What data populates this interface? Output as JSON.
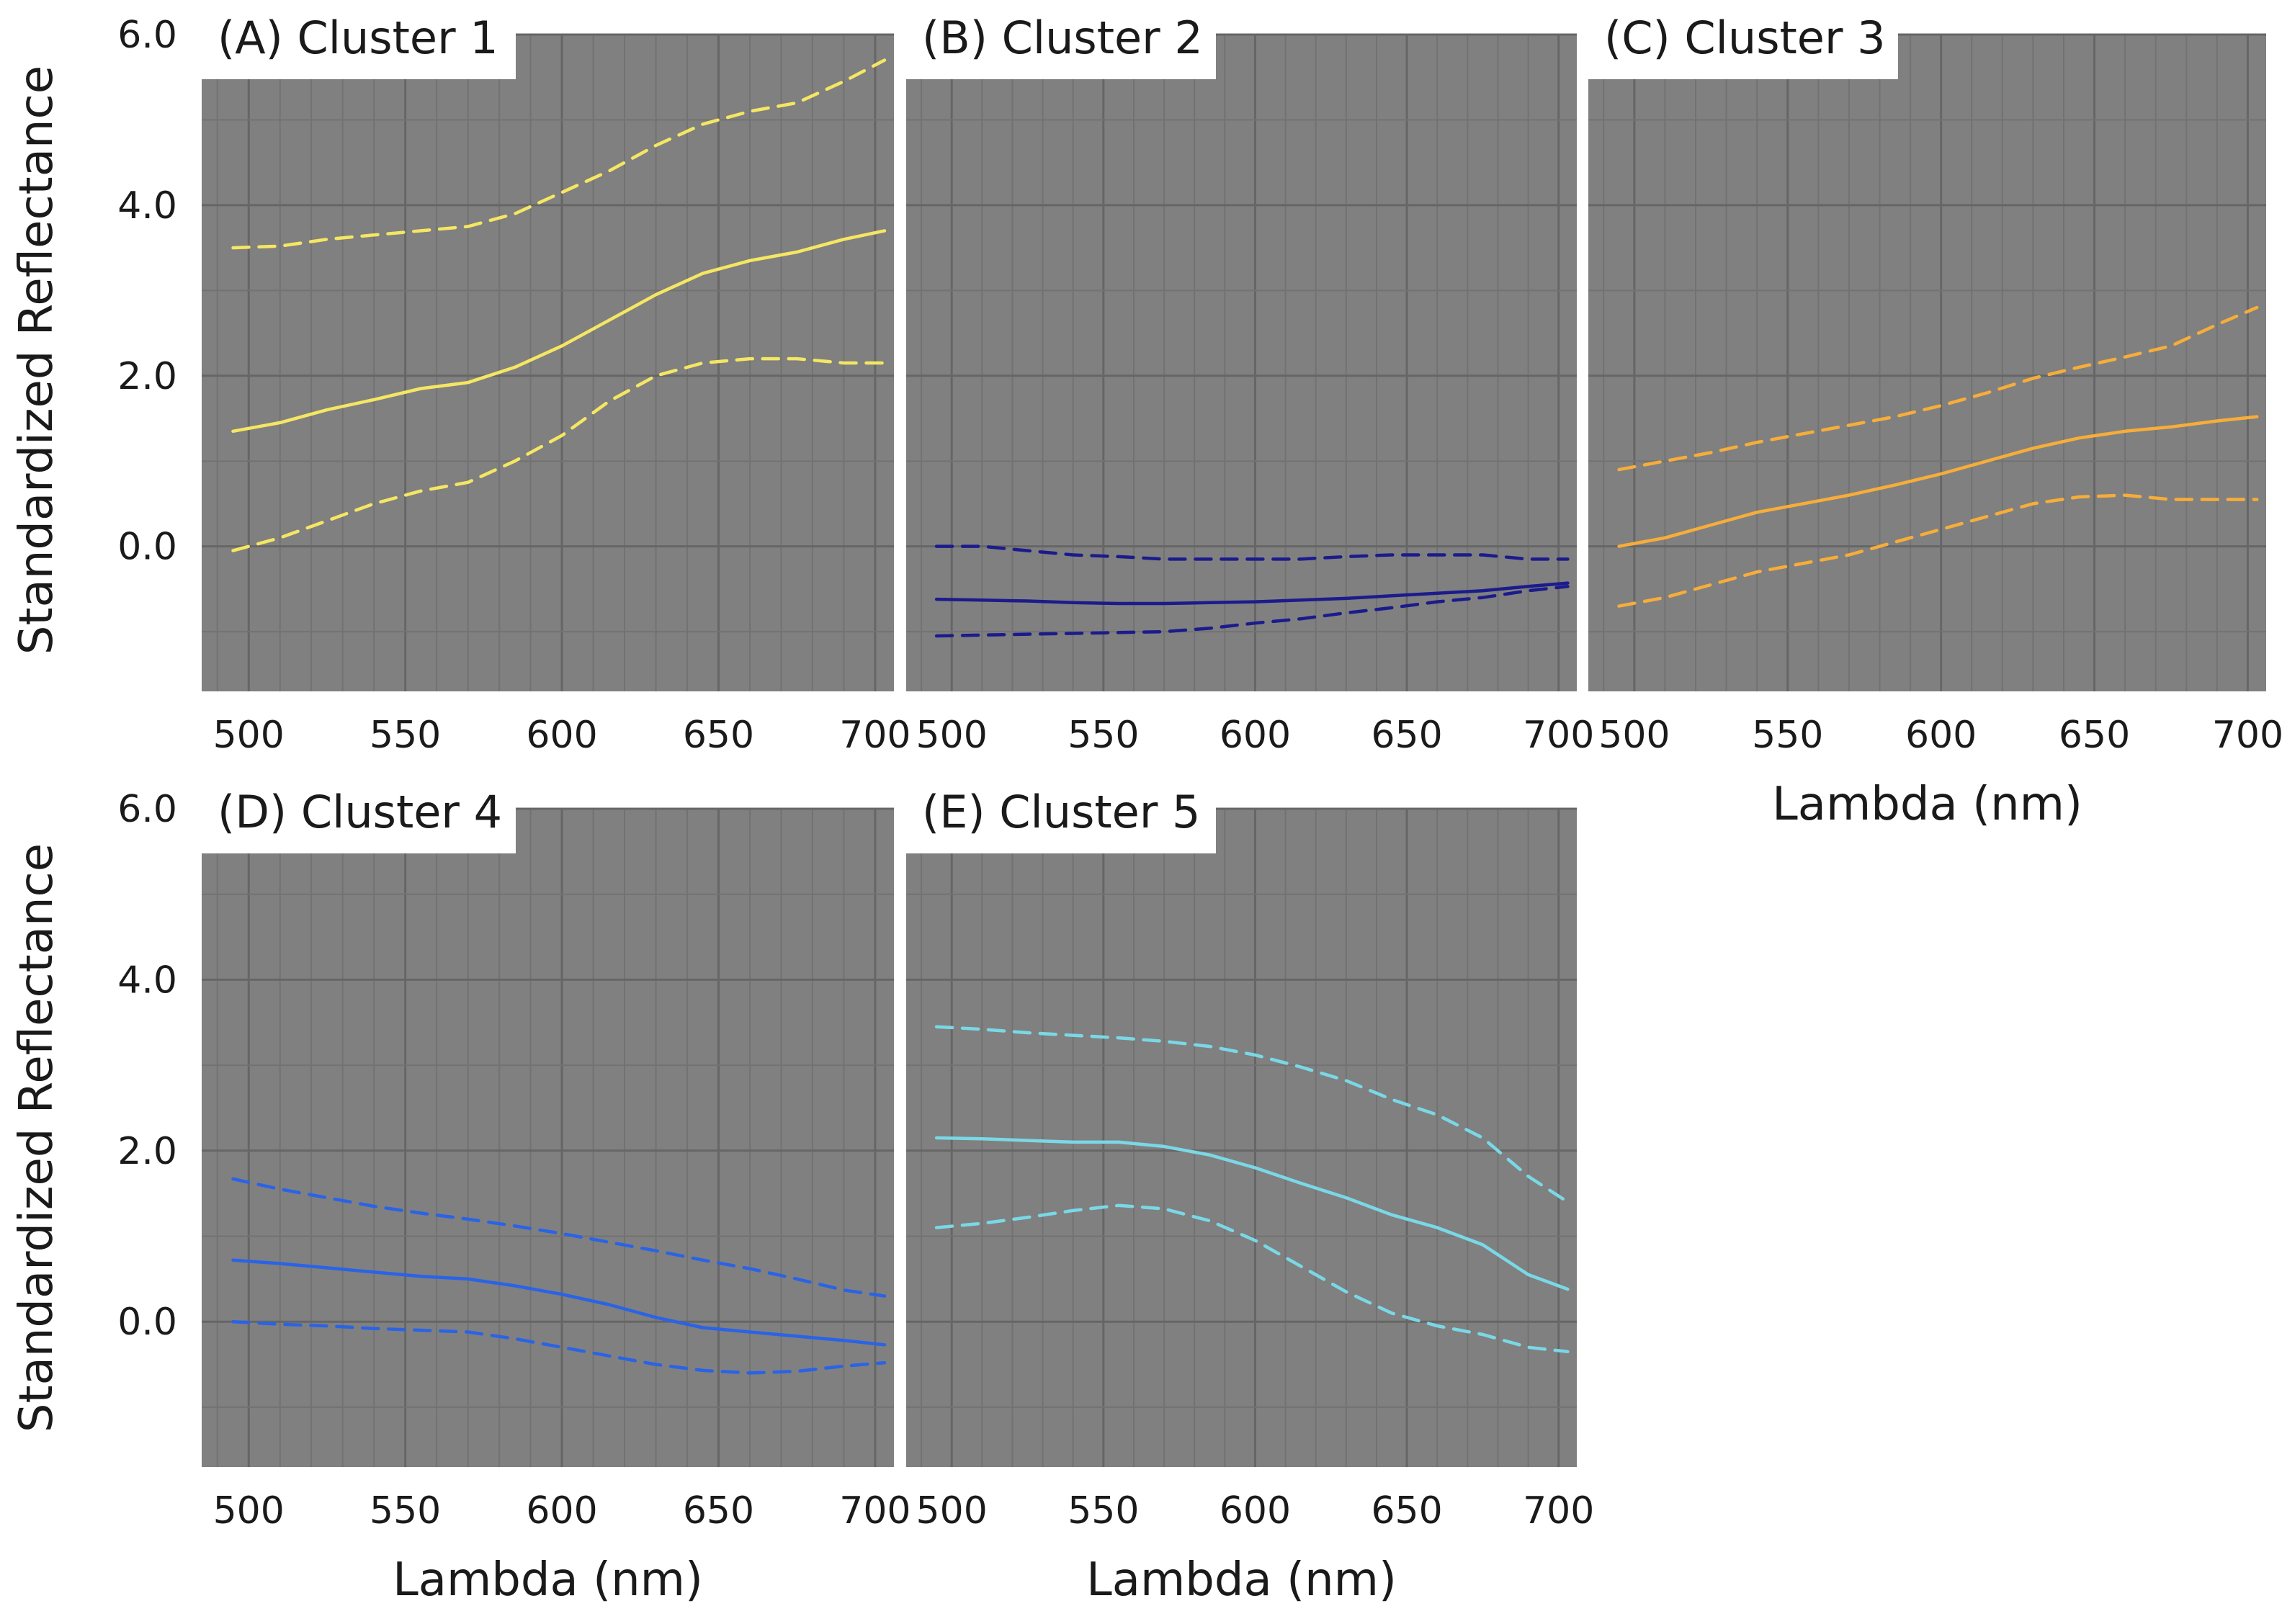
{
  "figure": {
    "ylabel": "Standardized Reflectance",
    "xlabel": "Lambda (nm)"
  },
  "chart_data": [
    {
      "type": "line",
      "title": "(A) Cluster 1",
      "color": "#f5e663",
      "xlabel": "",
      "ylabel": "Standardized Reflectance",
      "xlim": [
        485,
        706
      ],
      "ylim": [
        -1.7,
        6.0
      ],
      "xticks": [
        "500",
        "550",
        "600",
        "650",
        "700"
      ],
      "yticks": [
        "6.0",
        "4.0",
        "2.0",
        "0.0"
      ],
      "x": [
        495,
        510,
        525,
        540,
        555,
        570,
        585,
        600,
        615,
        630,
        645,
        660,
        675,
        690,
        703
      ],
      "series": [
        {
          "name": "mean",
          "style": "solid",
          "values": [
            1.35,
            1.45,
            1.6,
            1.72,
            1.85,
            1.92,
            2.1,
            2.35,
            2.65,
            2.95,
            3.2,
            3.35,
            3.45,
            3.6,
            3.7
          ]
        },
        {
          "name": "upper",
          "style": "dashed",
          "values": [
            3.5,
            3.52,
            3.6,
            3.65,
            3.7,
            3.75,
            3.9,
            4.15,
            4.4,
            4.7,
            4.95,
            5.1,
            5.2,
            5.45,
            5.7
          ]
        },
        {
          "name": "lower",
          "style": "dashed",
          "values": [
            -0.05,
            0.1,
            0.3,
            0.5,
            0.65,
            0.75,
            1.0,
            1.3,
            1.7,
            2.0,
            2.15,
            2.2,
            2.2,
            2.15,
            2.15
          ]
        }
      ]
    },
    {
      "type": "line",
      "title": "(B) Cluster 2",
      "color": "#1c1b8c",
      "xlabel": "",
      "ylabel": "",
      "xlim": [
        485,
        706
      ],
      "ylim": [
        -1.7,
        6.0
      ],
      "xticks": [
        "500",
        "550",
        "600",
        "650",
        "700"
      ],
      "yticks": [],
      "x": [
        495,
        510,
        525,
        540,
        555,
        570,
        585,
        600,
        615,
        630,
        645,
        660,
        675,
        690,
        703
      ],
      "series": [
        {
          "name": "mean",
          "style": "solid",
          "values": [
            -0.62,
            -0.63,
            -0.64,
            -0.66,
            -0.67,
            -0.67,
            -0.66,
            -0.65,
            -0.63,
            -0.61,
            -0.58,
            -0.55,
            -0.52,
            -0.47,
            -0.43
          ]
        },
        {
          "name": "upper",
          "style": "dashed",
          "values": [
            0.0,
            0.0,
            -0.05,
            -0.1,
            -0.12,
            -0.15,
            -0.15,
            -0.15,
            -0.15,
            -0.12,
            -0.1,
            -0.1,
            -0.1,
            -0.15,
            -0.15
          ]
        },
        {
          "name": "lower",
          "style": "dashed",
          "values": [
            -1.05,
            -1.04,
            -1.03,
            -1.02,
            -1.01,
            -1.0,
            -0.96,
            -0.9,
            -0.85,
            -0.78,
            -0.72,
            -0.65,
            -0.6,
            -0.52,
            -0.47
          ]
        }
      ]
    },
    {
      "type": "line",
      "title": "(C) Cluster 3",
      "color": "#f6ad3a",
      "xlabel": "Lambda (nm)",
      "ylabel": "",
      "xlim": [
        485,
        706
      ],
      "ylim": [
        -1.7,
        6.0
      ],
      "xticks": [
        "500",
        "550",
        "600",
        "650",
        "700"
      ],
      "yticks": [],
      "x": [
        495,
        510,
        525,
        540,
        555,
        570,
        585,
        600,
        615,
        630,
        645,
        660,
        675,
        690,
        703
      ],
      "series": [
        {
          "name": "mean",
          "style": "solid",
          "values": [
            0.0,
            0.1,
            0.25,
            0.4,
            0.5,
            0.6,
            0.72,
            0.85,
            1.0,
            1.15,
            1.27,
            1.35,
            1.4,
            1.47,
            1.52
          ]
        },
        {
          "name": "upper",
          "style": "dashed",
          "values": [
            0.9,
            1.0,
            1.1,
            1.22,
            1.32,
            1.42,
            1.52,
            1.65,
            1.8,
            1.97,
            2.1,
            2.22,
            2.35,
            2.6,
            2.8
          ]
        },
        {
          "name": "lower",
          "style": "dashed",
          "values": [
            -0.7,
            -0.6,
            -0.45,
            -0.3,
            -0.2,
            -0.1,
            0.05,
            0.2,
            0.35,
            0.5,
            0.58,
            0.6,
            0.55,
            0.55,
            0.55
          ]
        }
      ]
    },
    {
      "type": "line",
      "title": "(D) Cluster 4",
      "color": "#2a63e6",
      "xlabel": "Lambda (nm)",
      "ylabel": "Standardized Reflectance",
      "xlim": [
        485,
        706
      ],
      "ylim": [
        -1.7,
        6.0
      ],
      "xticks": [
        "500",
        "550",
        "600",
        "650",
        "700"
      ],
      "yticks": [
        "6.0",
        "4.0",
        "2.0",
        "0.0"
      ],
      "x": [
        495,
        510,
        525,
        540,
        555,
        570,
        585,
        600,
        615,
        630,
        645,
        660,
        675,
        690,
        703
      ],
      "series": [
        {
          "name": "mean",
          "style": "solid",
          "values": [
            0.72,
            0.68,
            0.63,
            0.58,
            0.53,
            0.5,
            0.42,
            0.32,
            0.2,
            0.05,
            -0.07,
            -0.12,
            -0.17,
            -0.22,
            -0.27
          ]
        },
        {
          "name": "upper",
          "style": "dashed",
          "values": [
            1.67,
            1.55,
            1.45,
            1.35,
            1.27,
            1.2,
            1.12,
            1.03,
            0.93,
            0.83,
            0.72,
            0.62,
            0.5,
            0.37,
            0.3
          ]
        },
        {
          "name": "lower",
          "style": "dashed",
          "values": [
            0.0,
            -0.03,
            -0.05,
            -0.08,
            -0.1,
            -0.12,
            -0.2,
            -0.3,
            -0.4,
            -0.5,
            -0.57,
            -0.6,
            -0.58,
            -0.52,
            -0.48
          ]
        }
      ]
    },
    {
      "type": "line",
      "title": "(E) Cluster 5",
      "color": "#7ad8e6",
      "xlabel": "Lambda (nm)",
      "ylabel": "",
      "xlim": [
        485,
        706
      ],
      "ylim": [
        -1.7,
        6.0
      ],
      "xticks": [
        "500",
        "550",
        "600",
        "650",
        "700"
      ],
      "yticks": [],
      "x": [
        495,
        510,
        525,
        540,
        555,
        570,
        585,
        600,
        615,
        630,
        645,
        660,
        675,
        690,
        703
      ],
      "series": [
        {
          "name": "mean",
          "style": "solid",
          "values": [
            2.15,
            2.14,
            2.12,
            2.1,
            2.1,
            2.05,
            1.95,
            1.8,
            1.62,
            1.45,
            1.25,
            1.1,
            0.9,
            0.55,
            0.38
          ]
        },
        {
          "name": "upper",
          "style": "dashed",
          "values": [
            3.45,
            3.42,
            3.38,
            3.35,
            3.32,
            3.28,
            3.22,
            3.12,
            2.98,
            2.82,
            2.6,
            2.42,
            2.15,
            1.7,
            1.4
          ]
        },
        {
          "name": "lower",
          "style": "dashed",
          "values": [
            1.1,
            1.15,
            1.22,
            1.3,
            1.36,
            1.32,
            1.18,
            0.95,
            0.65,
            0.35,
            0.1,
            -0.05,
            -0.15,
            -0.3,
            -0.35
          ]
        }
      ]
    }
  ]
}
